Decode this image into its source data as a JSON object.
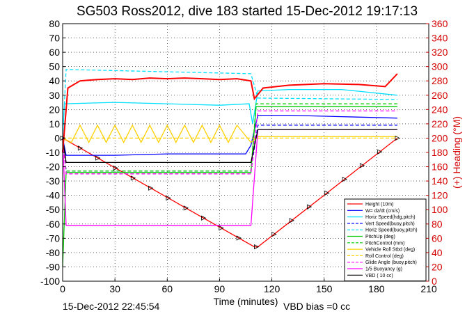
{
  "chart_data": {
    "type": "line",
    "title": "SG503 Ross2012, dive 183 started 15-Dec-2012 19:17:13",
    "xlabel": "Time (minutes)",
    "ylabel_right": "(+) Heading (°M)",
    "footer_left": "15-Dec-2012 22:45:54",
    "footer_right": "VBD bias =0 cc",
    "xlim": [
      0,
      210
    ],
    "ylim": [
      -100,
      80
    ],
    "ylim_right": [
      0,
      360
    ],
    "x_ticks": [
      0,
      30,
      60,
      90,
      120,
      150,
      180,
      210
    ],
    "y_ticks": [
      -100,
      -90,
      -80,
      -70,
      -60,
      -50,
      -40,
      -30,
      -20,
      -10,
      0,
      10,
      20,
      30,
      40,
      50,
      60,
      70,
      80
    ],
    "y_ticks_right": [
      0,
      20,
      40,
      60,
      80,
      100,
      120,
      140,
      160,
      180,
      200,
      220,
      240,
      260,
      280,
      300,
      320,
      340,
      360
    ],
    "grid": true,
    "legend_position": "bottom-right",
    "series": [
      {
        "name": "Height (10m)",
        "color": "#ff0000",
        "style": "solid",
        "x": [
          0,
          110,
          112,
          192
        ],
        "y": [
          0,
          -76,
          -76,
          0
        ]
      },
      {
        "name": "W= dz/dt (cm/s)",
        "color": "#0000ff",
        "style": "solid",
        "x": [
          0,
          2,
          30,
          60,
          90,
          105,
          108,
          112,
          130,
          160,
          192
        ],
        "y": [
          0,
          -12,
          -12,
          -11,
          -11,
          -11,
          -5,
          16,
          16,
          15,
          14
        ]
      },
      {
        "name": "Horiz Speed(hdg,pitch)",
        "color": "#00e0ff",
        "style": "solid",
        "x": [
          0,
          1,
          30,
          60,
          90,
          107,
          109,
          112,
          130,
          160,
          192
        ],
        "y": [
          0,
          24,
          25,
          24,
          23,
          24,
          10,
          33,
          34,
          34,
          30
        ]
      },
      {
        "name": "Vert Speed(buoy,pitch)",
        "color": "#0000ff",
        "style": "dashed",
        "x": [
          0,
          2,
          108,
          112,
          192
        ],
        "y": [
          0,
          -23,
          -23,
          9,
          9
        ]
      },
      {
        "name": "Horiz Speed(buoy,pitch)",
        "color": "#00e0ff",
        "style": "dashed",
        "x": [
          0,
          2,
          108,
          112,
          192
        ],
        "y": [
          0,
          48,
          45,
          28,
          27
        ]
      },
      {
        "name": "PitchUp (deg)",
        "color": "#00cc00",
        "style": "solid",
        "x": [
          0,
          2,
          108,
          111,
          192
        ],
        "y": [
          -90,
          -24,
          -24,
          22,
          22
        ]
      },
      {
        "name": "PitchControl (mm)",
        "color": "#00cc00",
        "style": "dashed",
        "x": [
          0,
          2,
          108,
          111,
          192
        ],
        "y": [
          0,
          -23,
          -23,
          24,
          24
        ]
      },
      {
        "name": "Vehicle Roll Stbd (deg)",
        "color": "#ffd000",
        "style": "solid",
        "x": [
          0,
          5,
          10,
          15,
          20,
          25,
          30,
          35,
          40,
          45,
          50,
          55,
          60,
          65,
          70,
          75,
          80,
          85,
          90,
          95,
          100,
          108,
          112,
          130,
          150,
          170,
          192
        ],
        "y": [
          0,
          -3,
          9,
          -3,
          9,
          -3,
          9,
          -3,
          9,
          -3,
          9,
          -3,
          9,
          -3,
          9,
          -3,
          9,
          -3,
          9,
          -3,
          9,
          -3,
          1,
          1,
          1,
          1,
          1
        ]
      },
      {
        "name": "Roll Control (deg)",
        "color": "#ffd000",
        "style": "dashed",
        "x": [
          0,
          192
        ],
        "y": [
          0,
          0
        ]
      },
      {
        "name": "Glide Angle (buoy,pitch)",
        "color": "#ff00ff",
        "style": "dashed",
        "x": [
          0,
          2,
          108,
          112,
          192
        ],
        "y": [
          0,
          -25,
          -25,
          19,
          19
        ]
      },
      {
        "name": "1/5 Buoyancy (g)",
        "color": "#ff00ff",
        "style": "solid",
        "x": [
          0,
          2,
          108,
          112,
          192
        ],
        "y": [
          0,
          -61,
          -61,
          6,
          6
        ]
      },
      {
        "name": "VBD ( 10 cc)",
        "color": "#000000",
        "style": "solid",
        "x": [
          0,
          2,
          108,
          112,
          192
        ],
        "y": [
          0,
          -17,
          -17,
          6,
          6
        ]
      },
      {
        "name": "Heading",
        "axis": "right",
        "color": "#ff0000",
        "style": "solid",
        "x": [
          0,
          3,
          10,
          20,
          30,
          40,
          50,
          60,
          70,
          80,
          90,
          100,
          108,
          110,
          115,
          130,
          150,
          170,
          185,
          192
        ],
        "y": [
          180,
          270,
          280,
          282,
          283,
          282,
          284,
          283,
          284,
          283,
          282,
          283,
          280,
          255,
          270,
          274,
          276,
          275,
          272,
          290
        ]
      }
    ]
  }
}
